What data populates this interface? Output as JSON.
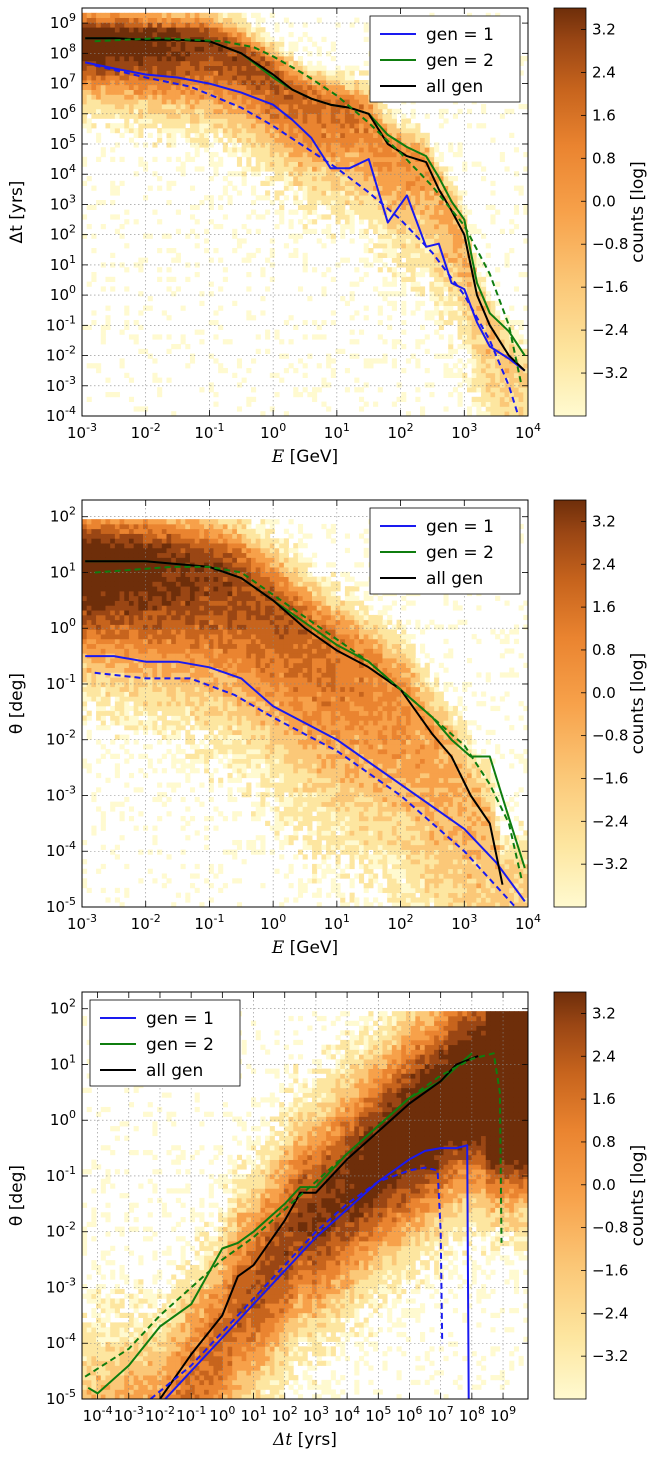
{
  "figure_title": "",
  "colorbar": {
    "label": "counts [log]",
    "ticks": [
      "3.2",
      "2.4",
      "1.6",
      "0.8",
      "0.0",
      "−0.8",
      "−1.6",
      "−2.4",
      "−3.2"
    ],
    "tick_values": [
      3.2,
      2.4,
      1.6,
      0.8,
      0.0,
      -0.8,
      -1.6,
      -2.4,
      -3.2
    ],
    "range": [
      -4.0,
      3.6
    ],
    "colors": [
      "#fffad0",
      "#fde6a0",
      "#fbc878",
      "#f7a14a",
      "#ea8430",
      "#c7641d",
      "#9a4614",
      "#6e2e0a"
    ]
  },
  "legend": {
    "gen1": "gen = 1",
    "gen2": "gen = 2",
    "all": "all gen"
  },
  "series_colors": {
    "gen1": "#1a1af0",
    "gen2": "#0f7d0f",
    "all": "#000000"
  },
  "chart_data": [
    {
      "type": "heatmap",
      "xlabel_math": "E",
      "xlabel_unit": " [GeV]",
      "ylabel": "Δt [yrs]",
      "xlim_log": [
        -3,
        4
      ],
      "ylim_log": [
        -4,
        9.5
      ],
      "x_ticks": [
        -3,
        -2,
        -1,
        0,
        1,
        2,
        3,
        4
      ],
      "y_ticks": [
        -4,
        -3,
        -2,
        -1,
        0,
        1,
        2,
        3,
        4,
        5,
        6,
        7,
        8,
        9
      ],
      "legend_position": "top-right",
      "series": [
        {
          "name": "gen = 1",
          "key": "gen1",
          "style": "solid",
          "x": [
            -2.95,
            -2.5,
            -2.0,
            -1.5,
            -1.0,
            -0.5,
            0.0,
            0.3,
            0.6,
            0.9,
            1.2,
            1.5,
            1.8,
            2.1,
            2.4,
            2.6,
            2.8,
            3.0,
            3.2,
            3.4,
            3.7,
            3.95
          ],
          "y": [
            7.7,
            7.5,
            7.3,
            7.2,
            7.0,
            6.7,
            6.3,
            5.8,
            5.2,
            4.2,
            4.2,
            4.5,
            2.4,
            3.3,
            1.6,
            1.7,
            0.4,
            0.2,
            -0.9,
            -1.7,
            -2.1,
            -2.5
          ]
        },
        {
          "name": "gen = 2",
          "key": "gen2",
          "style": "solid",
          "x": [
            -2.95,
            -2.5,
            -2.0,
            -1.5,
            -1.0,
            -0.5,
            0.0,
            0.3,
            0.6,
            0.9,
            1.2,
            1.5,
            1.8,
            2.1,
            2.4,
            2.6,
            2.8,
            3.0,
            3.2,
            3.4,
            3.7,
            3.95
          ],
          "y": [
            8.5,
            8.5,
            8.45,
            8.45,
            8.4,
            8.0,
            7.2,
            6.8,
            6.5,
            6.3,
            6.2,
            6.0,
            5.3,
            4.9,
            4.6,
            3.9,
            3.1,
            2.5,
            0.4,
            -0.6,
            -1.2,
            -2.0
          ]
        },
        {
          "name": "all gen",
          "key": "all",
          "style": "solid",
          "x": [
            -2.95,
            -2.5,
            -2.0,
            -1.5,
            -1.0,
            -0.5,
            0.0,
            0.3,
            0.6,
            0.9,
            1.2,
            1.5,
            1.8,
            2.1,
            2.4,
            2.6,
            2.8,
            3.0,
            3.2,
            3.4,
            3.7,
            3.95
          ],
          "y": [
            8.5,
            8.5,
            8.45,
            8.45,
            8.4,
            8.0,
            7.3,
            6.8,
            6.5,
            6.3,
            6.2,
            6.0,
            5.0,
            4.6,
            4.4,
            3.5,
            2.8,
            2.0,
            0.0,
            -1.0,
            -2.0,
            -2.5
          ]
        },
        {
          "name": "gen = 1 (dashed)",
          "key": "gen1",
          "style": "dashed",
          "x": [
            -2.8,
            -2.0,
            -1.3,
            -0.5,
            0.0,
            0.5,
            1.0,
            1.5,
            2.0,
            2.5,
            3.0,
            3.4,
            3.7,
            3.85
          ],
          "y": [
            7.6,
            7.2,
            6.9,
            6.2,
            5.6,
            4.9,
            4.2,
            3.4,
            2.5,
            1.4,
            0.0,
            -1.5,
            -3.0,
            -4.0
          ]
        },
        {
          "name": "gen = 2 (dashed)",
          "key": "gen2",
          "style": "dashed",
          "x": [
            -2.8,
            -2.3,
            -1.8,
            -1.3,
            -0.8,
            -0.3,
            0.0,
            0.5,
            1.0,
            1.5,
            2.0,
            2.5,
            3.0,
            3.4,
            3.7,
            3.9
          ],
          "y": [
            8.4,
            8.45,
            8.5,
            8.45,
            8.4,
            8.2,
            7.9,
            7.3,
            6.6,
            5.7,
            4.7,
            3.6,
            2.3,
            0.7,
            -1.0,
            -3.0
          ]
        }
      ]
    },
    {
      "type": "heatmap",
      "xlabel_math": "E",
      "xlabel_unit": " [GeV]",
      "ylabel": "θ [deg]",
      "xlim_log": [
        -3,
        4
      ],
      "ylim_log": [
        -5,
        2.3
      ],
      "x_ticks": [
        -3,
        -2,
        -1,
        0,
        1,
        2,
        3,
        4
      ],
      "y_ticks": [
        -5,
        -4,
        -3,
        -2,
        -1,
        0,
        1,
        2
      ],
      "legend_position": "top-right",
      "series": [
        {
          "name": "gen = 1",
          "key": "gen1",
          "style": "solid",
          "x": [
            -2.95,
            -2.5,
            -2.0,
            -1.5,
            -1.0,
            -0.5,
            0.0,
            0.5,
            1.0,
            1.5,
            2.0,
            2.5,
            3.0,
            3.5,
            3.95
          ],
          "y": [
            -0.5,
            -0.5,
            -0.6,
            -0.6,
            -0.7,
            -0.9,
            -1.4,
            -1.7,
            -2.0,
            -2.4,
            -2.8,
            -3.2,
            -3.6,
            -4.2,
            -4.9
          ]
        },
        {
          "name": "gen = 2",
          "key": "gen2",
          "style": "solid",
          "x": [
            -2.95,
            -2.5,
            -2.0,
            -1.5,
            -1.0,
            -0.5,
            0.0,
            0.5,
            1.0,
            1.5,
            2.0,
            2.5,
            2.8,
            3.1,
            3.4,
            3.7,
            3.95
          ],
          "y": [
            1.2,
            1.2,
            1.2,
            1.15,
            1.1,
            0.9,
            0.5,
            0.1,
            -0.3,
            -0.6,
            -1.1,
            -1.6,
            -2.0,
            -2.3,
            -2.3,
            -3.4,
            -4.3
          ]
        },
        {
          "name": "all gen",
          "key": "all",
          "style": "solid",
          "x": [
            -2.95,
            -2.5,
            -2.0,
            -1.5,
            -1.0,
            -0.5,
            0.0,
            0.5,
            1.0,
            1.5,
            2.0,
            2.5,
            2.8,
            3.1,
            3.4,
            3.6
          ],
          "y": [
            1.2,
            1.2,
            1.2,
            1.15,
            1.1,
            0.9,
            0.5,
            0.0,
            -0.4,
            -0.7,
            -1.1,
            -1.9,
            -2.3,
            -3.0,
            -3.5,
            -4.6
          ]
        },
        {
          "name": "gen = 1 (dashed)",
          "key": "gen1",
          "style": "dashed",
          "x": [
            -2.8,
            -2.0,
            -1.3,
            -0.6,
            0.0,
            0.5,
            1.0,
            1.5,
            2.0,
            2.5,
            3.0,
            3.4,
            3.8
          ],
          "y": [
            -0.8,
            -0.9,
            -0.9,
            -1.2,
            -1.6,
            -1.9,
            -2.2,
            -2.6,
            -3.0,
            -3.5,
            -4.0,
            -4.5,
            -5.0
          ]
        },
        {
          "name": "gen = 2 (dashed)",
          "key": "gen2",
          "style": "dashed",
          "x": [
            -2.8,
            -2.2,
            -1.6,
            -1.0,
            -0.5,
            0.0,
            0.5,
            1.0,
            1.5,
            2.0,
            2.5,
            3.0,
            3.4,
            3.7,
            3.9
          ],
          "y": [
            1.0,
            1.05,
            1.1,
            1.1,
            1.0,
            0.6,
            0.2,
            -0.2,
            -0.6,
            -1.1,
            -1.6,
            -2.1,
            -2.8,
            -3.5,
            -4.5
          ]
        }
      ]
    },
    {
      "type": "heatmap",
      "xlabel_math": "Δt",
      "xlabel_unit": " [yrs]",
      "ylabel": "θ [deg]",
      "xlim_log": [
        -4.5,
        9.8
      ],
      "ylim_log": [
        -5,
        2.3
      ],
      "x_ticks": [
        -4,
        -3,
        -2,
        -1,
        0,
        1,
        2,
        3,
        4,
        5,
        6,
        7,
        8,
        9
      ],
      "y_ticks": [
        -5,
        -4,
        -3,
        -2,
        -1,
        0,
        1,
        2
      ],
      "legend_position": "top-left",
      "series": [
        {
          "name": "gen = 1",
          "key": "gen1",
          "style": "solid",
          "x": [
            -2.0,
            -1.0,
            0.0,
            1.0,
            2.0,
            3.0,
            4.0,
            5.0,
            6.0,
            6.5,
            7.0,
            7.5,
            7.85,
            7.9
          ],
          "y": [
            -5.1,
            -4.5,
            -3.9,
            -3.3,
            -2.7,
            -2.1,
            -1.6,
            -1.1,
            -0.7,
            -0.55,
            -0.5,
            -0.5,
            -0.45,
            -5.0
          ]
        },
        {
          "name": "gen = 2",
          "key": "gen2",
          "style": "solid",
          "x": [
            -4.3,
            -4.0,
            -3.0,
            -2.0,
            -1.0,
            0.0,
            0.5,
            1.0,
            2.0,
            2.5,
            3.0,
            4.0,
            5.0,
            6.0,
            7.0,
            8.0
          ],
          "y": [
            -4.8,
            -4.9,
            -4.4,
            -3.7,
            -3.3,
            -2.3,
            -2.2,
            -2.0,
            -1.5,
            -1.2,
            -1.2,
            -0.6,
            -0.1,
            0.4,
            0.7,
            1.2
          ]
        },
        {
          "name": "all gen",
          "key": "all",
          "style": "solid",
          "x": [
            -2.0,
            -1.5,
            -1.0,
            0.0,
            0.5,
            1.0,
            2.0,
            2.5,
            3.0,
            4.0,
            5.0,
            6.0,
            7.0,
            7.5,
            8.2
          ],
          "y": [
            -5.0,
            -4.6,
            -4.2,
            -3.5,
            -2.8,
            -2.6,
            -1.8,
            -1.3,
            -1.3,
            -0.7,
            -0.2,
            0.3,
            0.7,
            1.0,
            1.15
          ]
        },
        {
          "name": "gen = 1 (dashed)",
          "key": "gen1",
          "style": "dashed",
          "x": [
            -2.3,
            -1.0,
            0.0,
            1.0,
            2.0,
            3.0,
            4.0,
            5.0,
            6.0,
            6.5,
            6.9,
            7.0,
            7.05
          ],
          "y": [
            -5.0,
            -4.4,
            -3.8,
            -3.2,
            -2.6,
            -2.0,
            -1.5,
            -1.1,
            -0.9,
            -0.85,
            -0.9,
            -2.0,
            -4.0
          ]
        },
        {
          "name": "gen = 2 (dashed)",
          "key": "gen2",
          "style": "dashed",
          "x": [
            -4.4,
            -3.0,
            -2.0,
            -1.0,
            0.0,
            1.0,
            2.0,
            3.0,
            4.0,
            5.0,
            6.0,
            7.0,
            8.0,
            8.7,
            8.9,
            8.95
          ],
          "y": [
            -4.6,
            -4.1,
            -3.5,
            -3.0,
            -2.5,
            -2.1,
            -1.6,
            -1.1,
            -0.6,
            -0.1,
            0.4,
            0.8,
            1.1,
            1.2,
            0.5,
            -2.2
          ]
        }
      ]
    }
  ]
}
